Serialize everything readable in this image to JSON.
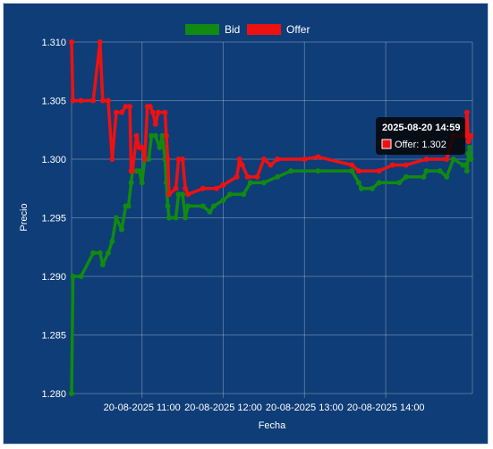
{
  "chart_data": {
    "type": "line",
    "xlabel": "Fecha",
    "ylabel": "Precio",
    "ylim": [
      1.28,
      1.31
    ],
    "y_ticks": [
      "1.310",
      "1.305",
      "1.300",
      "1.295",
      "1.290",
      "1.285",
      "1.280"
    ],
    "x_ticks": [
      "20-08-2025 11:00",
      "20-08-2025 12:00",
      "20-08-2025 13:00",
      "20-08-2025 14:00"
    ],
    "grid": true,
    "legend_position": "top",
    "series": [
      {
        "name": "Bid",
        "color": "#118a11",
        "points": [
          [
            "10:08",
            1.28
          ],
          [
            "10:09",
            1.29
          ],
          [
            "10:15",
            1.29
          ],
          [
            "10:24",
            1.292
          ],
          [
            "10:29",
            1.292
          ],
          [
            "10:31",
            1.291
          ],
          [
            "10:35",
            1.292
          ],
          [
            "10:38",
            1.293
          ],
          [
            "10:41",
            1.295
          ],
          [
            "10:45",
            1.294
          ],
          [
            "10:48",
            1.296
          ],
          [
            "10:50",
            1.296
          ],
          [
            "10:52",
            1.298
          ],
          [
            "10:53",
            1.299
          ],
          [
            "10:56",
            1.299
          ],
          [
            "10:58",
            1.299
          ],
          [
            "11:00",
            1.298
          ],
          [
            "11:02",
            1.3
          ],
          [
            "11:05",
            1.3
          ],
          [
            "11:07",
            1.302
          ],
          [
            "11:10",
            1.302
          ],
          [
            "11:13",
            1.301
          ],
          [
            "11:15",
            1.302
          ],
          [
            "11:17",
            1.3
          ],
          [
            "11:18",
            1.298
          ],
          [
            "11:19",
            1.296
          ],
          [
            "11:20",
            1.295
          ],
          [
            "11:25",
            1.295
          ],
          [
            "11:27",
            1.297
          ],
          [
            "11:30",
            1.297
          ],
          [
            "11:32",
            1.295
          ],
          [
            "11:34",
            1.296
          ],
          [
            "11:45",
            1.296
          ],
          [
            "11:50",
            1.2955
          ],
          [
            "11:53",
            1.296
          ],
          [
            "12:00",
            1.2965
          ],
          [
            "12:05",
            1.297
          ],
          [
            "12:15",
            1.297
          ],
          [
            "12:20",
            1.298
          ],
          [
            "12:30",
            1.298
          ],
          [
            "12:40",
            1.2985
          ],
          [
            "12:50",
            1.299
          ],
          [
            "13:10",
            1.299
          ],
          [
            "13:35",
            1.299
          ],
          [
            "13:40",
            1.298
          ],
          [
            "13:42",
            1.2975
          ],
          [
            "13:50",
            1.2975
          ],
          [
            "13:55",
            1.298
          ],
          [
            "14:10",
            1.298
          ],
          [
            "14:15",
            1.2985
          ],
          [
            "14:28",
            1.2985
          ],
          [
            "14:30",
            1.299
          ],
          [
            "14:40",
            1.299
          ],
          [
            "14:45",
            1.2985
          ],
          [
            "14:50",
            1.3
          ],
          [
            "14:57",
            1.2995
          ],
          [
            "14:59",
            1.2995
          ],
          [
            "15:00",
            1.299
          ],
          [
            "15:01",
            1.3005
          ],
          [
            "15:02",
            1.301
          ],
          [
            "15:03",
            1.3
          ]
        ]
      },
      {
        "name": "Offer",
        "color": "#ee1111",
        "points": [
          [
            "10:08",
            1.31
          ],
          [
            "10:09",
            1.305
          ],
          [
            "10:15",
            1.305
          ],
          [
            "10:24",
            1.305
          ],
          [
            "10:29",
            1.31
          ],
          [
            "10:31",
            1.305
          ],
          [
            "10:35",
            1.305
          ],
          [
            "10:38",
            1.3
          ],
          [
            "10:41",
            1.304
          ],
          [
            "10:45",
            1.304
          ],
          [
            "10:48",
            1.3045
          ],
          [
            "10:51",
            1.3045
          ],
          [
            "10:52",
            1.299
          ],
          [
            "10:53",
            1.299
          ],
          [
            "10:56",
            1.302
          ],
          [
            "10:58",
            1.301
          ],
          [
            "11:00",
            1.301
          ],
          [
            "11:02",
            1.3
          ],
          [
            "11:04",
            1.3045
          ],
          [
            "11:06",
            1.3045
          ],
          [
            "11:08",
            1.304
          ],
          [
            "11:10",
            1.303
          ],
          [
            "11:12",
            1.304
          ],
          [
            "11:17",
            1.304
          ],
          [
            "11:18",
            1.302
          ],
          [
            "11:19",
            1.3
          ],
          [
            "11:20",
            1.297
          ],
          [
            "11:25",
            1.2975
          ],
          [
            "11:27",
            1.3
          ],
          [
            "11:30",
            1.3
          ],
          [
            "11:32",
            1.2975
          ],
          [
            "11:34",
            1.297
          ],
          [
            "11:45",
            1.2975
          ],
          [
            "11:55",
            1.2975
          ],
          [
            "12:00",
            1.2978
          ],
          [
            "12:10",
            1.2985
          ],
          [
            "12:12",
            1.3
          ],
          [
            "12:14",
            1.2995
          ],
          [
            "12:18",
            1.2985
          ],
          [
            "12:25",
            1.2985
          ],
          [
            "12:30",
            1.3
          ],
          [
            "12:35",
            1.2995
          ],
          [
            "12:40",
            1.3
          ],
          [
            "13:00",
            1.3
          ],
          [
            "13:10",
            1.3002
          ],
          [
            "13:35",
            1.2995
          ],
          [
            "13:40",
            1.299
          ],
          [
            "13:55",
            1.299
          ],
          [
            "14:05",
            1.2995
          ],
          [
            "14:15",
            1.2995
          ],
          [
            "14:30",
            1.3
          ],
          [
            "14:45",
            1.3
          ],
          [
            "14:50",
            1.302
          ],
          [
            "14:57",
            1.302
          ],
          [
            "14:59",
            1.302
          ],
          [
            "15:00",
            1.304
          ],
          [
            "15:01",
            1.3015
          ],
          [
            "15:03",
            1.302
          ]
        ]
      }
    ]
  },
  "tooltip": {
    "title": "2025-08-20 14:59",
    "label": "Offer: 1.302"
  }
}
